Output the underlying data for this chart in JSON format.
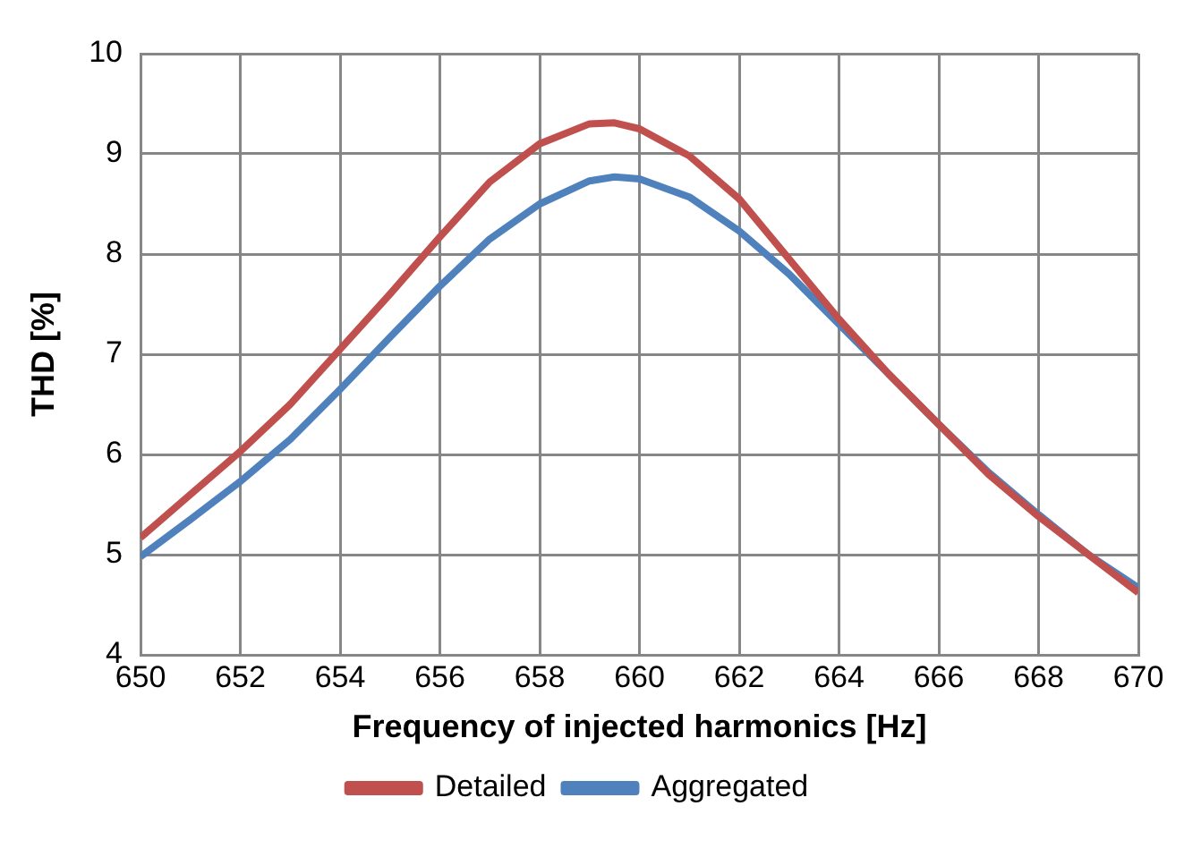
{
  "chart_data": {
    "type": "line",
    "xlabel": "Frequency of injected harmonics [Hz]",
    "ylabel": "THD [%]",
    "x": [
      650,
      651,
      652,
      653,
      654,
      655,
      656,
      657,
      658,
      659,
      659.5,
      660,
      661,
      662,
      663,
      664,
      665,
      666,
      667,
      668,
      669,
      670
    ],
    "series": [
      {
        "name": "Detailed",
        "color": "#c0504d",
        "values": [
          5.17,
          5.6,
          6.03,
          6.5,
          7.05,
          7.6,
          8.17,
          8.72,
          9.1,
          9.3,
          9.31,
          9.25,
          8.98,
          8.55,
          7.95,
          7.35,
          6.8,
          6.3,
          5.8,
          5.38,
          5.0,
          4.62
        ]
      },
      {
        "name": "Aggregated",
        "color": "#4f81bd",
        "values": [
          4.98,
          5.35,
          5.73,
          6.15,
          6.65,
          7.17,
          7.68,
          8.15,
          8.5,
          8.73,
          8.77,
          8.75,
          8.57,
          8.23,
          7.8,
          7.3,
          6.8,
          6.3,
          5.82,
          5.4,
          5.0,
          4.67
        ]
      }
    ],
    "xlim": [
      650,
      670
    ],
    "xticks": [
      650,
      652,
      654,
      656,
      658,
      660,
      662,
      664,
      666,
      668,
      670
    ],
    "ylim": [
      4,
      10
    ],
    "yticks": [
      4,
      5,
      6,
      7,
      8,
      9,
      10
    ],
    "grid": true,
    "legend": "bottom",
    "marker": "none",
    "line_style": "solid"
  }
}
